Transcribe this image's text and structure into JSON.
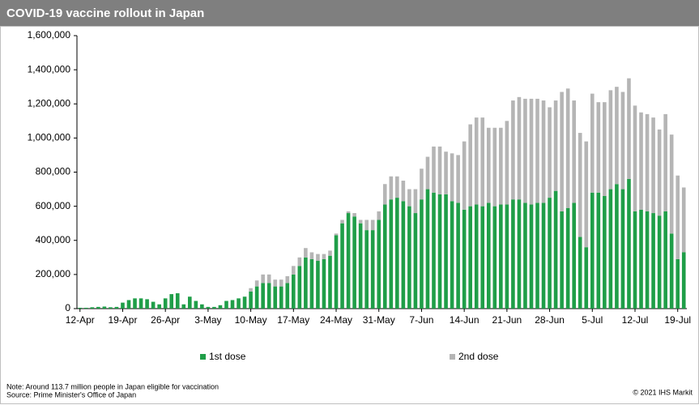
{
  "chart_data": {
    "type": "stacked_bar",
    "title": "COVID-19 vaccine rollout in Japan",
    "note": "Note: Around 113.7 million people in Japan eligible  for vaccination",
    "source": "Source: Prime Minister's Office of Japan",
    "copyright": "© 2021  IHS Markit",
    "categories": [
      "12-Apr",
      null,
      null,
      null,
      null,
      null,
      null,
      "19-Apr",
      null,
      null,
      null,
      null,
      null,
      null,
      "26-Apr",
      null,
      null,
      null,
      null,
      null,
      null,
      "3-May",
      null,
      null,
      null,
      null,
      null,
      null,
      "10-May",
      null,
      null,
      null,
      null,
      null,
      null,
      "17-May",
      null,
      null,
      null,
      null,
      null,
      null,
      "24-May",
      null,
      null,
      null,
      null,
      null,
      null,
      "31-May",
      null,
      null,
      null,
      null,
      null,
      null,
      "7-Jun",
      null,
      null,
      null,
      null,
      null,
      null,
      "14-Jun",
      null,
      null,
      null,
      null,
      null,
      null,
      "21-Jun",
      null,
      null,
      null,
      null,
      null,
      null,
      "28-Jun",
      null,
      null,
      null,
      null,
      null,
      null,
      "5-Jul",
      null,
      null,
      null,
      null,
      null,
      null,
      "12-Jul",
      null,
      null,
      null,
      null,
      null,
      null,
      "19-Jul",
      null
    ],
    "series": [
      {
        "name": "1st dose",
        "color": "#1f9e48",
        "values": [
          5000,
          5000,
          8000,
          10000,
          12000,
          8000,
          10000,
          35000,
          50000,
          60000,
          60000,
          55000,
          40000,
          25000,
          60000,
          85000,
          90000,
          25000,
          70000,
          45000,
          25000,
          10000,
          10000,
          20000,
          45000,
          50000,
          60000,
          70000,
          100000,
          130000,
          150000,
          150000,
          130000,
          130000,
          150000,
          200000,
          250000,
          300000,
          290000,
          280000,
          290000,
          310000,
          430000,
          500000,
          560000,
          540000,
          500000,
          460000,
          460000,
          520000,
          610000,
          640000,
          650000,
          630000,
          600000,
          560000,
          640000,
          700000,
          680000,
          670000,
          670000,
          630000,
          620000,
          580000,
          600000,
          610000,
          600000,
          620000,
          600000,
          610000,
          610000,
          640000,
          640000,
          620000,
          610000,
          620000,
          620000,
          650000,
          690000,
          570000,
          590000,
          620000,
          420000,
          360000,
          680000,
          680000,
          660000,
          700000,
          730000,
          700000,
          760000,
          570000,
          580000,
          570000,
          560000,
          545000,
          570000,
          440000,
          290000,
          330000
        ]
      },
      {
        "name": "2nd dose",
        "color": "#b5b5b5",
        "values": [
          0,
          0,
          0,
          0,
          0,
          0,
          0,
          0,
          0,
          0,
          0,
          0,
          0,
          0,
          0,
          0,
          0,
          0,
          0,
          0,
          0,
          0,
          0,
          0,
          0,
          0,
          0,
          0,
          20000,
          35000,
          50000,
          50000,
          40000,
          40000,
          40000,
          50000,
          50000,
          55000,
          40000,
          40000,
          30000,
          30000,
          10000,
          20000,
          10000,
          20000,
          20000,
          60000,
          60000,
          50000,
          120000,
          135000,
          125000,
          120000,
          100000,
          140000,
          180000,
          190000,
          270000,
          280000,
          250000,
          280000,
          280000,
          400000,
          480000,
          510000,
          520000,
          440000,
          460000,
          450000,
          490000,
          580000,
          600000,
          610000,
          620000,
          610000,
          600000,
          530000,
          530000,
          700000,
          700000,
          600000,
          610000,
          620000,
          580000,
          530000,
          550000,
          580000,
          570000,
          570000,
          590000,
          620000,
          570000,
          570000,
          560000,
          505000,
          570000,
          580000,
          490000,
          380000
        ]
      }
    ],
    "ylim": [
      0,
      1600000
    ],
    "yticks": [
      0,
      {
        "value": 200000,
        "label": "200,000"
      },
      {
        "value": 400000,
        "label": "400,000"
      },
      {
        "value": 600000,
        "label": "600,000"
      },
      {
        "value": 800000,
        "label": "800,000"
      },
      {
        "value": 1000000,
        "label": "1,000,000"
      },
      {
        "value": 1200000,
        "label": "1,200,000"
      },
      {
        "value": 1400000,
        "label": "1,400,000"
      },
      {
        "value": 1600000,
        "label": "1,600,000"
      }
    ],
    "legend": "bottom"
  }
}
